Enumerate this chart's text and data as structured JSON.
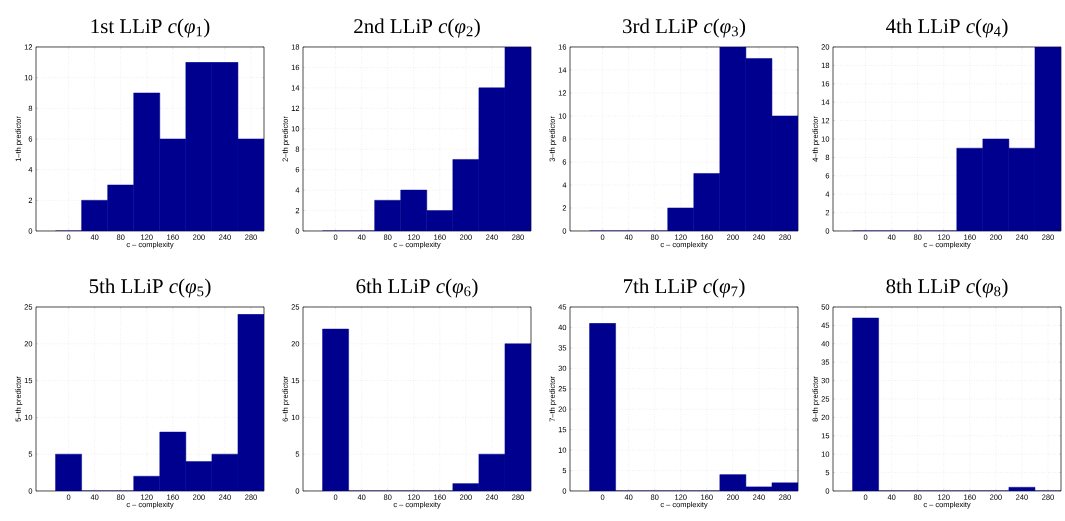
{
  "chart_data": [
    {
      "type": "histogram",
      "title": "1st LLiP *c*(*φ*$_{1}$)",
      "xlabel": "c – complexity",
      "ylabel": "1–th predictor",
      "bins": [
        -20,
        20,
        60,
        100,
        140,
        180,
        220,
        260,
        300
      ],
      "values": [
        0,
        2,
        3,
        9,
        6,
        11,
        11,
        6
      ],
      "color": "#00008f",
      "xlim": [
        -50,
        300
      ],
      "xticks": [
        0,
        40,
        80,
        120,
        160,
        200,
        240,
        280
      ],
      "ylim": [
        0,
        12
      ],
      "yticks": [
        0,
        2,
        4,
        6,
        8,
        10,
        12
      ],
      "grid": true
    },
    {
      "type": "histogram",
      "title": "2nd LLiP *c*(*φ*$_{2}$)",
      "xlabel": "c – complexity",
      "ylabel": "2–th predictor",
      "bins": [
        -20,
        20,
        60,
        100,
        140,
        180,
        220,
        260,
        300
      ],
      "values": [
        0,
        0,
        3,
        4,
        2,
        7,
        14,
        18
      ],
      "color": "#00008f",
      "xlim": [
        -50,
        300
      ],
      "xticks": [
        0,
        40,
        80,
        120,
        160,
        200,
        240,
        280
      ],
      "ylim": [
        0,
        18
      ],
      "yticks": [
        0,
        2,
        4,
        6,
        8,
        10,
        12,
        14,
        16,
        18
      ],
      "grid": true
    },
    {
      "type": "histogram",
      "title": "3rd LLiP *c*(*φ*$_{3}$)",
      "xlabel": "c – complexity",
      "ylabel": "3–th predictor",
      "bins": [
        -20,
        20,
        60,
        100,
        140,
        180,
        220,
        260,
        300
      ],
      "values": [
        0,
        0,
        0,
        2,
        5,
        16,
        15,
        10
      ],
      "color": "#00008f",
      "xlim": [
        -50,
        300
      ],
      "xticks": [
        0,
        40,
        80,
        120,
        160,
        200,
        240,
        280
      ],
      "ylim": [
        0,
        16
      ],
      "yticks": [
        0,
        2,
        4,
        6,
        8,
        10,
        12,
        14,
        16
      ],
      "grid": true
    },
    {
      "type": "histogram",
      "title": "4th LLiP *c*(*φ*$_{4}$)",
      "xlabel": "c – complexity",
      "ylabel": "4–th predictor",
      "bins": [
        -20,
        20,
        60,
        100,
        140,
        180,
        220,
        260,
        300
      ],
      "values": [
        0,
        0,
        0,
        0,
        9,
        10,
        9,
        20
      ],
      "color": "#00008f",
      "xlim": [
        -50,
        300
      ],
      "xticks": [
        0,
        40,
        80,
        120,
        160,
        200,
        240,
        280
      ],
      "ylim": [
        0,
        20
      ],
      "yticks": [
        0,
        2,
        4,
        6,
        8,
        10,
        12,
        14,
        16,
        18,
        20
      ],
      "grid": true
    },
    {
      "type": "histogram",
      "title": "5th LLiP *c*(*φ*$_{5}$)",
      "xlabel": "c – complexity",
      "ylabel": "5–th predictor",
      "bins": [
        -20,
        20,
        60,
        100,
        140,
        180,
        220,
        260,
        300
      ],
      "values": [
        5,
        0,
        0,
        2,
        8,
        4,
        5,
        24
      ],
      "color": "#00008f",
      "xlim": [
        -50,
        300
      ],
      "xticks": [
        0,
        40,
        80,
        120,
        160,
        200,
        240,
        280
      ],
      "ylim": [
        0,
        25
      ],
      "yticks": [
        0,
        5,
        10,
        15,
        20,
        25
      ],
      "grid": true
    },
    {
      "type": "histogram",
      "title": "6th LLiP *c*(*φ*$_{6}$)",
      "xlabel": "c – complexity",
      "ylabel": "6–th predictor",
      "bins": [
        -20,
        20,
        60,
        100,
        140,
        180,
        220,
        260,
        300
      ],
      "values": [
        22,
        0,
        0,
        0,
        0,
        1,
        5,
        20
      ],
      "color": "#00008f",
      "xlim": [
        -50,
        300
      ],
      "xticks": [
        0,
        40,
        80,
        120,
        160,
        200,
        240,
        280
      ],
      "ylim": [
        0,
        25
      ],
      "yticks": [
        0,
        5,
        10,
        15,
        20,
        25
      ],
      "grid": true
    },
    {
      "type": "histogram",
      "title": "7th LLiP *c*(*φ*$_{7}$)",
      "xlabel": "c – complexity",
      "ylabel": "7–th predictor",
      "bins": [
        -20,
        20,
        60,
        100,
        140,
        180,
        220,
        260,
        300
      ],
      "values": [
        41,
        0,
        0,
        0,
        0,
        4,
        1,
        2
      ],
      "color": "#00008f",
      "xlim": [
        -50,
        300
      ],
      "xticks": [
        0,
        40,
        80,
        120,
        160,
        200,
        240,
        280
      ],
      "ylim": [
        0,
        45
      ],
      "yticks": [
        0,
        5,
        10,
        15,
        20,
        25,
        30,
        35,
        40,
        45
      ],
      "grid": true
    },
    {
      "type": "histogram",
      "title": "8th LLiP *c*(*φ*$_{8}$)",
      "xlabel": "c – complexity",
      "ylabel": "8–th predictor",
      "bins": [
        -20,
        20,
        60,
        100,
        140,
        180,
        220,
        260,
        300
      ],
      "values": [
        47,
        0,
        0,
        0,
        0,
        0,
        1,
        0
      ],
      "color": "#00008f",
      "xlim": [
        -50,
        300
      ],
      "xticks": [
        0,
        40,
        80,
        120,
        160,
        200,
        240,
        280
      ],
      "ylim": [
        0,
        50
      ],
      "yticks": [
        0,
        5,
        10,
        15,
        20,
        25,
        30,
        35,
        40,
        45,
        50
      ],
      "grid": true
    }
  ]
}
